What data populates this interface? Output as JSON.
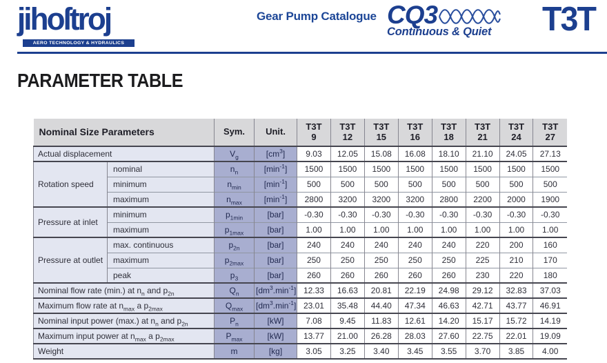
{
  "header": {
    "logo_text": "jihoſtroj",
    "logo_tagline": "AERO TECHNOLOGY & HYDRAULICS",
    "catalogue_title": "Gear Pump Catalogue",
    "product_name": "CQ3",
    "product_tagline": "Continuous & Quiet",
    "series": "T3T"
  },
  "page_title": "PARAMETER TABLE",
  "colors": {
    "brand_navy": "#1c3f8f",
    "table_header_bg": "#d8d8da",
    "label_bg": "#e3e6f1",
    "sym_unit_bg": "#a8aed0",
    "group_border": "#45454f"
  },
  "table": {
    "header": {
      "params": "Nominal Size Parameters",
      "sym": "Sym.",
      "unit": "Unit.",
      "model_prefix": "T3T",
      "sizes": [
        "9",
        "12",
        "15",
        "16",
        "18",
        "21",
        "24",
        "27"
      ]
    },
    "rows": [
      {
        "label": "Actual displacement",
        "sym": "V_{g}",
        "unit": "[cm^{3}]",
        "groupStart": true,
        "values": [
          "9.03",
          "12.05",
          "15.08",
          "16.08",
          "18.10",
          "21.10",
          "24.05",
          "27.13"
        ]
      },
      {
        "group": {
          "label": "Rotation speed",
          "rowspan": 3
        },
        "sub": "nominal",
        "sym": "n_{n}",
        "unit": "[min^{-1}]",
        "groupStart": true,
        "values": [
          "1500",
          "1500",
          "1500",
          "1500",
          "1500",
          "1500",
          "1500",
          "1500"
        ]
      },
      {
        "sub": "minimum",
        "sym": "n_{min}",
        "unit": "[min^{-1}]",
        "groupStart": false,
        "values": [
          "500",
          "500",
          "500",
          "500",
          "500",
          "500",
          "500",
          "500"
        ]
      },
      {
        "sub": "maximum",
        "sym": "n_{max}",
        "unit": "[min^{-1}]",
        "groupStart": false,
        "values": [
          "2800",
          "3200",
          "3200",
          "3200",
          "2800",
          "2200",
          "2000",
          "1900"
        ]
      },
      {
        "group": {
          "label": "Pressure at inlet",
          "rowspan": 2
        },
        "sub": "minimum",
        "sym": "p_{1min}",
        "unit": "[bar]",
        "groupStart": true,
        "values": [
          "-0.30",
          "-0.30",
          "-0.30",
          "-0.30",
          "-0.30",
          "-0.30",
          "-0.30",
          "-0.30"
        ]
      },
      {
        "sub": "maximum",
        "sym": "p_{1max}",
        "unit": "[bar]",
        "groupStart": false,
        "values": [
          "1.00",
          "1.00",
          "1.00",
          "1.00",
          "1.00",
          "1.00",
          "1.00",
          "1.00"
        ]
      },
      {
        "group": {
          "label": "Pressure at outlet",
          "rowspan": 3
        },
        "sub": "max. continuous",
        "sym": "p_{2n}",
        "unit": "[bar]",
        "groupStart": true,
        "values": [
          "240",
          "240",
          "240",
          "240",
          "240",
          "220",
          "200",
          "160"
        ]
      },
      {
        "sub": "maximum",
        "sym": "p_{2max}",
        "unit": "[bar]",
        "groupStart": false,
        "values": [
          "250",
          "250",
          "250",
          "250",
          "250",
          "225",
          "210",
          "170"
        ]
      },
      {
        "sub": "peak",
        "sym": "p_{3}",
        "unit": "[bar]",
        "groupStart": false,
        "values": [
          "260",
          "260",
          "260",
          "260",
          "260",
          "230",
          "220",
          "180"
        ]
      },
      {
        "label": "Nominal flow rate (min.) at n_{n} and p_{2n}",
        "sym": "Q_{n}",
        "unit": "[dm^{3}.min^{-1}]",
        "groupStart": true,
        "values": [
          "12.33",
          "16.63",
          "20.81",
          "22.19",
          "24.98",
          "29.12",
          "32.83",
          "37.03"
        ]
      },
      {
        "label": "Maximum flow rate at n_{max} a p_{2max}",
        "sym": "Q_{max}",
        "unit": "[dm^{3}.min^{-1}]",
        "groupStart": true,
        "values": [
          "23.01",
          "35.48",
          "44.40",
          "47.34",
          "46.63",
          "42.71",
          "43.77",
          "46.91"
        ]
      },
      {
        "label": "Nominal input power (max.) at n_{n} and p_{2n}",
        "sym": "P_{n}",
        "unit": "[kW]",
        "groupStart": true,
        "values": [
          "7.08",
          "9.45",
          "11.83",
          "12.61",
          "14.20",
          "15.17",
          "15.72",
          "14.19"
        ]
      },
      {
        "label": "Maximum input power at n_{max} a p_{2max}",
        "sym": "P_{max}",
        "unit": "[kW]",
        "groupStart": true,
        "values": [
          "13.77",
          "21.00",
          "26.28",
          "28.03",
          "27.60",
          "22.75",
          "22.01",
          "19.09"
        ]
      },
      {
        "label": "Weight",
        "sym": "m",
        "unit": "[kg]",
        "groupStart": true,
        "values": [
          "3.05",
          "3.25",
          "3.40",
          "3.45",
          "3.55",
          "3.70",
          "3.85",
          "4.00"
        ]
      }
    ]
  }
}
